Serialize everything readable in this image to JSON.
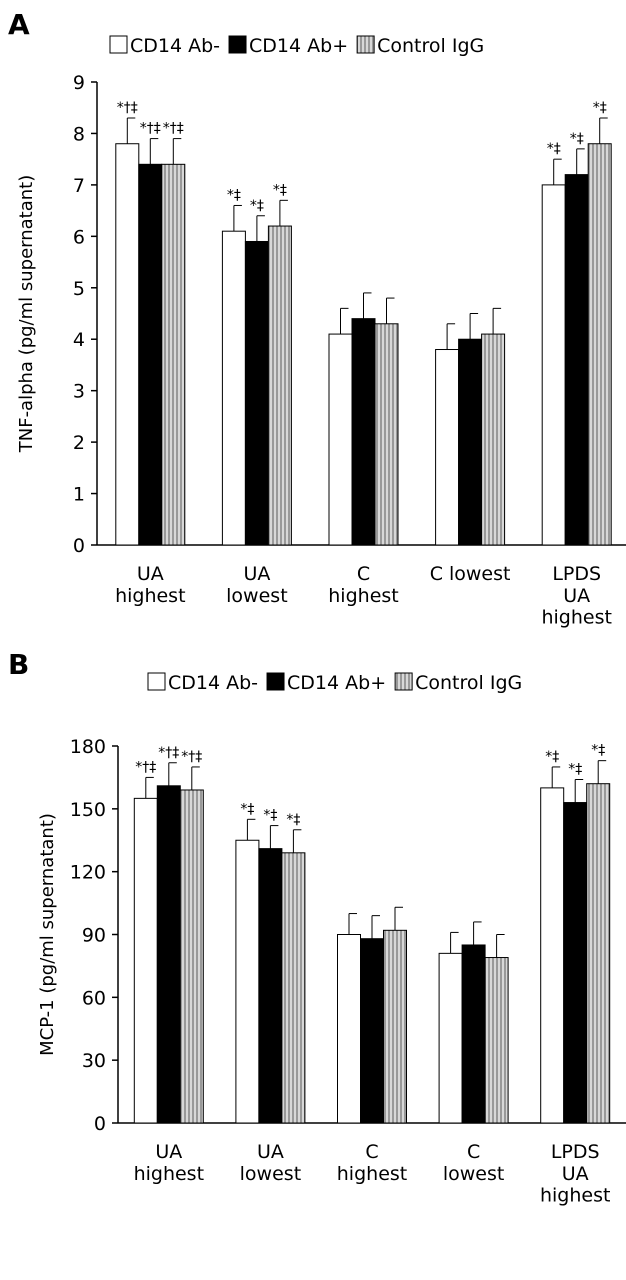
{
  "chart_data": [
    {
      "type": "bar",
      "panel": "A",
      "ylabel": "TNF-alpha (pg/ml supernatant)",
      "categories": [
        "UA\nhighest",
        "UA\nlowest",
        "C\nhighest",
        "C lowest",
        "LPDS\nUA\nhighest"
      ],
      "ylim": [
        0,
        9
      ],
      "yticks": [
        0,
        1,
        2,
        3,
        4,
        5,
        6,
        7,
        8,
        9
      ],
      "series": [
        {
          "name": "CD14 Ab-",
          "color": "#ffffff",
          "values": [
            7.8,
            6.1,
            4.1,
            3.8,
            7.0
          ],
          "errors": [
            0.5,
            0.5,
            0.5,
            0.5,
            0.5
          ],
          "annotations": [
            "*†‡",
            "*‡",
            null,
            null,
            "*‡"
          ]
        },
        {
          "name": "CD14 Ab+",
          "color": "#000000",
          "values": [
            7.4,
            5.9,
            4.4,
            4.0,
            7.2
          ],
          "errors": [
            0.5,
            0.5,
            0.5,
            0.5,
            0.5
          ],
          "annotations": [
            "*†‡",
            "*‡",
            null,
            null,
            "*‡"
          ]
        },
        {
          "name": "Control IgG",
          "color": "#aaaaaa",
          "pattern": "vertical-stripes",
          "values": [
            7.4,
            6.2,
            4.3,
            4.1,
            7.8
          ],
          "errors": [
            0.5,
            0.5,
            0.5,
            0.5,
            0.5
          ],
          "annotations": [
            "*†‡",
            "*‡",
            null,
            null,
            "*‡"
          ]
        }
      ]
    },
    {
      "type": "bar",
      "panel": "B",
      "ylabel": "MCP-1 (pg/ml supernatant)",
      "categories": [
        "UA\nhighest",
        "UA\nlowest",
        "C\nhighest",
        "C\nlowest",
        "LPDS\nUA\nhighest"
      ],
      "ylim": [
        0,
        180
      ],
      "yticks": [
        0,
        30,
        60,
        90,
        120,
        150,
        180
      ],
      "series": [
        {
          "name": "CD14 Ab-",
          "color": "#ffffff",
          "values": [
            155,
            135,
            90,
            81,
            160
          ],
          "errors": [
            10,
            10,
            10,
            10,
            10
          ],
          "annotations": [
            "*†‡",
            "*‡",
            null,
            null,
            "*‡"
          ]
        },
        {
          "name": "CD14 Ab+",
          "color": "#000000",
          "values": [
            161,
            131,
            88,
            85,
            153
          ],
          "errors": [
            11,
            11,
            11,
            11,
            11
          ],
          "annotations": [
            "*†‡",
            "*‡",
            null,
            null,
            "*‡"
          ]
        },
        {
          "name": "Control IgG",
          "color": "#aaaaaa",
          "pattern": "vertical-stripes",
          "values": [
            159,
            129,
            92,
            79,
            162
          ],
          "errors": [
            11,
            11,
            11,
            11,
            11
          ],
          "annotations": [
            "*†‡",
            "*‡",
            null,
            null,
            "*‡"
          ]
        }
      ]
    }
  ]
}
